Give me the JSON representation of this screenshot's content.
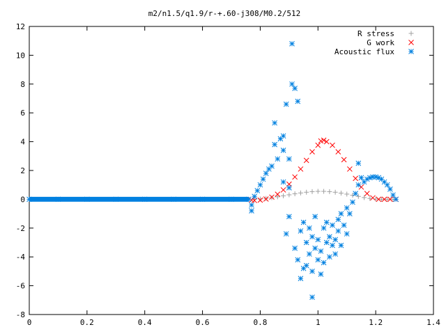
{
  "chart_data": {
    "type": "scatter",
    "title": "m2/n1.5/q1.9/r-+.60-j308/M0.2/512",
    "xlabel": "",
    "ylabel": "",
    "xlim": [
      0,
      1.4
    ],
    "ylim": [
      -8,
      12
    ],
    "grid": false,
    "legend_position": "top-right",
    "x_ticks": [
      "0",
      "0.2",
      "0.4",
      "0.6",
      "0.8",
      "1",
      "1.2",
      "1.4"
    ],
    "y_ticks": [
      "-8",
      "-6",
      "-4",
      "-2",
      "0",
      "2",
      "4",
      "6",
      "8",
      "10",
      "12"
    ],
    "series": [
      {
        "name": "R stress",
        "marker": "plus",
        "color": "#a0a0a0",
        "points": [
          [
            0.78,
            0.0
          ],
          [
            0.8,
            0.02
          ],
          [
            0.82,
            0.06
          ],
          [
            0.84,
            0.11
          ],
          [
            0.86,
            0.17
          ],
          [
            0.88,
            0.24
          ],
          [
            0.9,
            0.31
          ],
          [
            0.92,
            0.38
          ],
          [
            0.94,
            0.44
          ],
          [
            0.96,
            0.49
          ],
          [
            0.98,
            0.53
          ],
          [
            1.0,
            0.55
          ],
          [
            1.02,
            0.55
          ],
          [
            1.04,
            0.53
          ],
          [
            1.06,
            0.49
          ],
          [
            1.08,
            0.43
          ],
          [
            1.1,
            0.36
          ],
          [
            1.12,
            0.28
          ],
          [
            1.14,
            0.2
          ],
          [
            1.16,
            0.12
          ],
          [
            1.18,
            0.06
          ],
          [
            1.2,
            0.02
          ],
          [
            1.22,
            0.0
          ],
          [
            1.24,
            -0.01
          ],
          [
            1.26,
            0.0
          ]
        ]
      },
      {
        "name": "G work",
        "marker": "cross",
        "color": "#ff0000",
        "points": [
          [
            0.77,
            -0.05
          ],
          [
            0.78,
            -0.08
          ],
          [
            0.8,
            -0.06
          ],
          [
            0.82,
            0.02
          ],
          [
            0.84,
            0.15
          ],
          [
            0.86,
            0.35
          ],
          [
            0.88,
            0.65
          ],
          [
            0.9,
            1.05
          ],
          [
            0.92,
            1.55
          ],
          [
            0.94,
            2.1
          ],
          [
            0.96,
            2.7
          ],
          [
            0.98,
            3.3
          ],
          [
            1.0,
            3.75
          ],
          [
            1.01,
            4.05
          ],
          [
            1.02,
            4.1
          ],
          [
            1.03,
            4.0
          ],
          [
            1.05,
            3.75
          ],
          [
            1.07,
            3.3
          ],
          [
            1.09,
            2.75
          ],
          [
            1.11,
            2.1
          ],
          [
            1.13,
            1.45
          ],
          [
            1.15,
            0.85
          ],
          [
            1.17,
            0.4
          ],
          [
            1.19,
            0.1
          ],
          [
            1.21,
            0.0
          ],
          [
            1.23,
            0.0
          ],
          [
            1.25,
            0.0
          ],
          [
            1.27,
            0.0
          ]
        ]
      },
      {
        "name": "Acoustic flux",
        "marker": "star",
        "color": "#0080e0",
        "points": [
          [
            0.0,
            0
          ],
          [
            0.1,
            0
          ],
          [
            0.2,
            0
          ],
          [
            0.3,
            0
          ],
          [
            0.4,
            0
          ],
          [
            0.5,
            0
          ],
          [
            0.6,
            0
          ],
          [
            0.7,
            0
          ],
          [
            0.76,
            0
          ],
          [
            0.77,
            -0.8
          ],
          [
            0.77,
            -0.4
          ],
          [
            0.78,
            0.2
          ],
          [
            0.79,
            0.6
          ],
          [
            0.8,
            1.0
          ],
          [
            0.81,
            1.4
          ],
          [
            0.82,
            1.8
          ],
          [
            0.83,
            2.1
          ],
          [
            0.84,
            2.3
          ],
          [
            0.85,
            5.3
          ],
          [
            0.85,
            3.8
          ],
          [
            0.86,
            2.8
          ],
          [
            0.87,
            4.2
          ],
          [
            0.88,
            4.4
          ],
          [
            0.88,
            3.4
          ],
          [
            0.89,
            6.6
          ],
          [
            0.89,
            -2.4
          ],
          [
            0.9,
            2.8
          ],
          [
            0.9,
            -1.2
          ],
          [
            0.91,
            10.8
          ],
          [
            0.91,
            8.0
          ],
          [
            0.92,
            7.7
          ],
          [
            0.92,
            -3.4
          ],
          [
            0.93,
            6.8
          ],
          [
            0.93,
            -4.2
          ],
          [
            0.94,
            -5.5
          ],
          [
            0.94,
            -2.2
          ],
          [
            0.95,
            -4.8
          ],
          [
            0.95,
            -1.6
          ],
          [
            0.96,
            -3.0
          ],
          [
            0.96,
            -4.6
          ],
          [
            0.97,
            -2.0
          ],
          [
            0.97,
            -3.8
          ],
          [
            0.98,
            -2.6
          ],
          [
            0.98,
            -5.0
          ],
          [
            0.99,
            -3.4
          ],
          [
            0.99,
            -1.2
          ],
          [
            1.0,
            -4.2
          ],
          [
            1.0,
            -2.8
          ],
          [
            1.01,
            -3.6
          ],
          [
            1.01,
            -5.2
          ],
          [
            1.02,
            -2.0
          ],
          [
            1.02,
            -4.4
          ],
          [
            1.03,
            -3.0
          ],
          [
            1.03,
            -1.6
          ],
          [
            1.04,
            -4.0
          ],
          [
            1.04,
            -2.6
          ],
          [
            1.05,
            -3.2
          ],
          [
            1.05,
            -1.8
          ],
          [
            1.06,
            -3.8
          ],
          [
            1.06,
            -2.8
          ],
          [
            1.07,
            -1.4
          ],
          [
            1.07,
            -2.2
          ],
          [
            1.08,
            -1.0
          ],
          [
            1.08,
            -3.2
          ],
          [
            1.09,
            -1.8
          ],
          [
            1.1,
            -0.6
          ],
          [
            1.1,
            -2.4
          ],
          [
            1.11,
            -1.0
          ],
          [
            1.12,
            -0.2
          ],
          [
            1.13,
            0.4
          ],
          [
            1.14,
            1.0
          ],
          [
            1.14,
            2.5
          ],
          [
            1.15,
            1.5
          ],
          [
            1.16,
            1.2
          ],
          [
            1.17,
            1.4
          ],
          [
            1.18,
            1.5
          ],
          [
            1.19,
            1.55
          ],
          [
            1.2,
            1.55
          ],
          [
            1.21,
            1.5
          ],
          [
            1.22,
            1.4
          ],
          [
            1.23,
            1.2
          ],
          [
            1.24,
            1.0
          ],
          [
            1.25,
            0.7
          ],
          [
            1.26,
            0.3
          ],
          [
            1.27,
            0.0
          ],
          [
            0.98,
            -6.8
          ],
          [
            0.88,
            1.2
          ],
          [
            0.9,
            0.8
          ]
        ]
      }
    ]
  }
}
